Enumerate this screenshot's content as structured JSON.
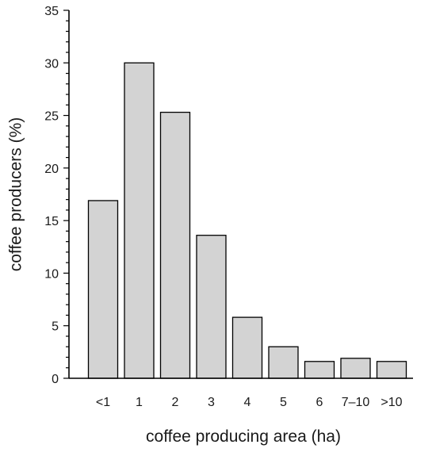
{
  "chart_data": {
    "type": "bar",
    "title": "",
    "xlabel": "coffee producing area (ha)",
    "ylabel": "coffee producers (%)",
    "categories": [
      "<1",
      "1",
      "2",
      "3",
      "4",
      "5",
      "6",
      "7–10",
      ">10"
    ],
    "values": [
      16.9,
      30.0,
      25.3,
      13.6,
      5.8,
      3.0,
      1.6,
      1.9,
      1.6
    ],
    "ylim": [
      0,
      35
    ],
    "y_ticks": [
      "0",
      "5",
      "10",
      "15",
      "20",
      "25",
      "30",
      "35"
    ],
    "y_minor_step": 1,
    "grid": false,
    "legend": "none",
    "bar_fill": "#d3d3d3",
    "bar_stroke": "#000000"
  }
}
